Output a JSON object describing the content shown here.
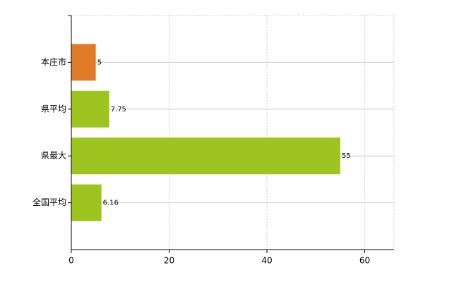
{
  "chart_data": {
    "type": "barh",
    "categories": [
      "本庄市",
      "県平均",
      "県最大",
      "全国平均"
    ],
    "values": [
      5,
      7.75,
      55,
      6.16
    ],
    "colors": [
      "#e07b28",
      "#9dc41f",
      "#9dc41f",
      "#9dc41f"
    ],
    "xlim": [
      0,
      66
    ],
    "xticks": [
      0,
      20,
      40,
      60
    ],
    "grid": true
  }
}
